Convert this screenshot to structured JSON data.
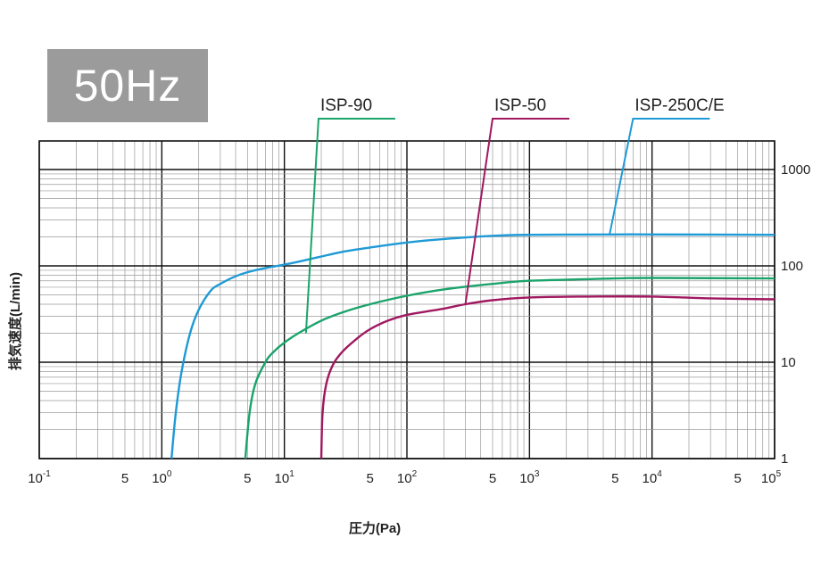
{
  "badge": "50Hz",
  "chart_data": {
    "type": "line",
    "xscale": "log",
    "yscale": "log",
    "xlim": [
      0.1,
      100000
    ],
    "ylim": [
      1,
      2000
    ],
    "xlabel": "圧力(Pa)",
    "ylabel": "排気速度(L/min)",
    "xtick_labels": [
      {
        "value": 0.1,
        "base": "10",
        "exp": "-1"
      },
      {
        "value": 0.5,
        "base": "5",
        "exp": ""
      },
      {
        "value": 1,
        "base": "10",
        "exp": "0"
      },
      {
        "value": 5,
        "base": "5",
        "exp": ""
      },
      {
        "value": 10,
        "base": "10",
        "exp": "1"
      },
      {
        "value": 50,
        "base": "5",
        "exp": ""
      },
      {
        "value": 100,
        "base": "10",
        "exp": "2"
      },
      {
        "value": 500,
        "base": "5",
        "exp": ""
      },
      {
        "value": 1000,
        "base": "10",
        "exp": "3"
      },
      {
        "value": 5000,
        "base": "5",
        "exp": ""
      },
      {
        "value": 10000,
        "base": "10",
        "exp": "4"
      },
      {
        "value": 50000,
        "base": "5",
        "exp": ""
      },
      {
        "value": 100000,
        "base": "10",
        "exp": "5"
      }
    ],
    "ytick_labels": [
      {
        "value": 1,
        "text": "1"
      },
      {
        "value": 10,
        "text": "10"
      },
      {
        "value": 100,
        "text": "100"
      },
      {
        "value": 1000,
        "text": "1000"
      }
    ],
    "series": [
      {
        "name": "ISP-250C/E",
        "color": "#1e9ad6",
        "x": [
          1.2,
          1.3,
          1.45,
          1.7,
          2,
          2.5,
          3,
          4,
          5,
          7,
          10,
          15,
          20,
          30,
          50,
          100,
          200,
          500,
          1000,
          5000,
          10000,
          100000
        ],
        "y": [
          1,
          3,
          8,
          20,
          35,
          55,
          65,
          78,
          86,
          95,
          103,
          115,
          125,
          140,
          155,
          175,
          190,
          205,
          210,
          212,
          212,
          210
        ],
        "label_anchor": {
          "x": 4500,
          "y": 210
        },
        "label_pos": {
          "x": 7000,
          "y": 1550
        }
      },
      {
        "name": "ISP-90",
        "color": "#1aa36b",
        "x": [
          4.8,
          5.2,
          5.8,
          7,
          8,
          10,
          13,
          20,
          30,
          50,
          100,
          200,
          500,
          1000,
          5000,
          10000,
          100000
        ],
        "y": [
          1,
          3,
          6,
          10,
          12.5,
          16,
          20,
          27,
          33,
          40,
          49,
          57,
          65,
          70,
          74,
          75,
          74
        ],
        "label_anchor": {
          "x": 15,
          "y": 20
        },
        "label_pos": {
          "x": 19,
          "y": 1750
        }
      },
      {
        "name": "ISP-50",
        "color": "#a0185f",
        "x": [
          20,
          20.5,
          22,
          25,
          30,
          40,
          50,
          70,
          100,
          200,
          300,
          500,
          1000,
          3000,
          10000,
          30000,
          100000
        ],
        "y": [
          1,
          3,
          6,
          9.5,
          13,
          18,
          22,
          27,
          31,
          36,
          40,
          44,
          47,
          48,
          48,
          46,
          45
        ],
        "label_anchor": {
          "x": 300,
          "y": 40
        },
        "label_pos": {
          "x": 500,
          "y": 1750
        }
      }
    ]
  }
}
